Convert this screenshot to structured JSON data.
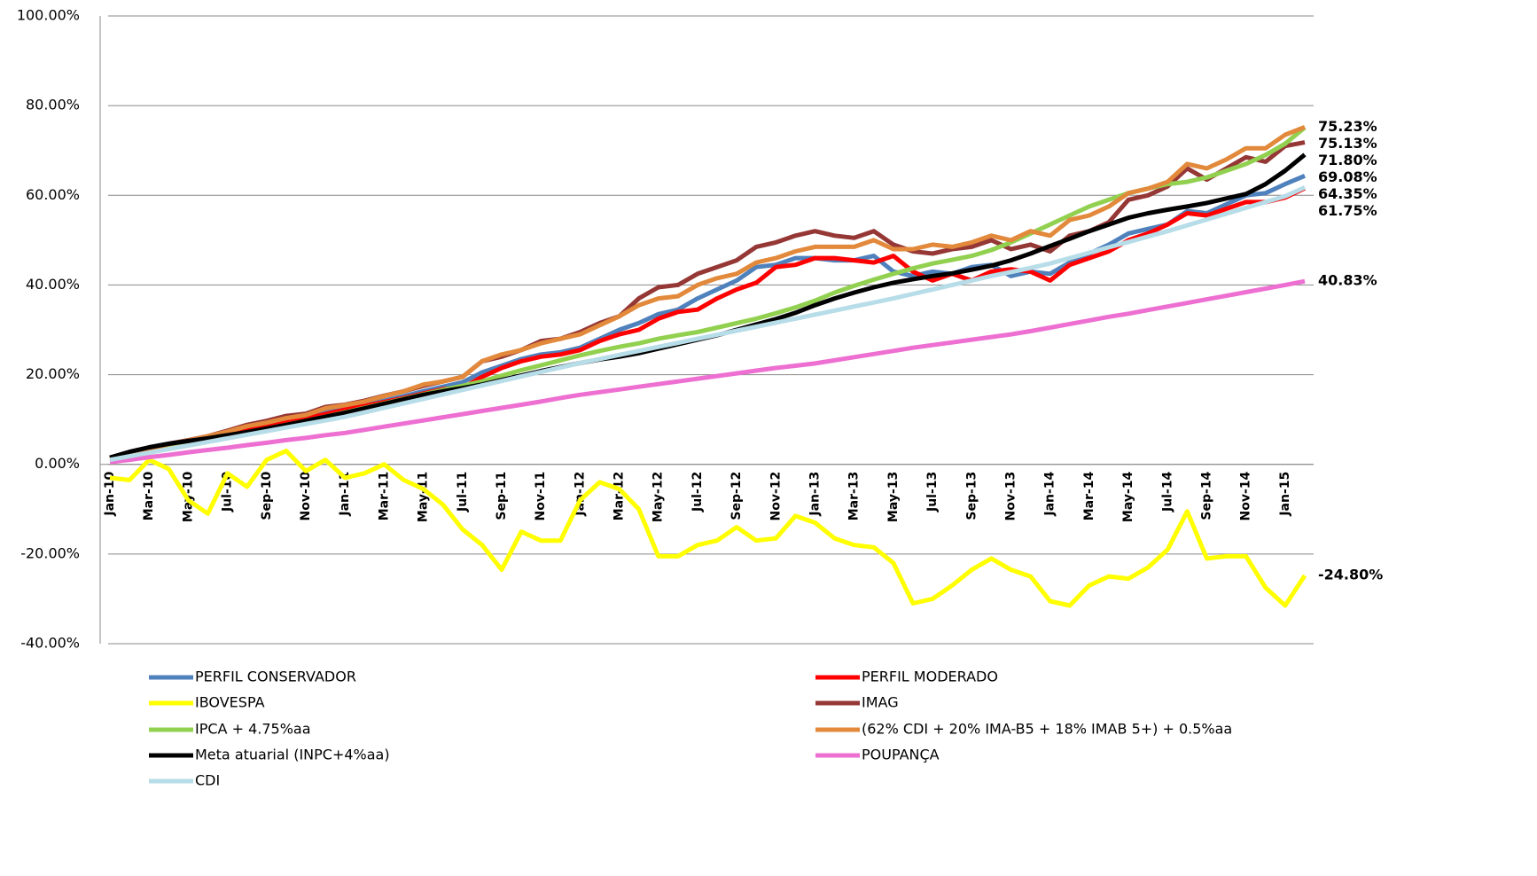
{
  "chart_data": {
    "type": "line",
    "categories": [
      "Jan-10",
      null,
      "Mar-10",
      null,
      "May-10",
      null,
      "Jul-10",
      null,
      "Sep-10",
      null,
      "Nov-10",
      null,
      "Jan-11",
      null,
      "Mar-11",
      null,
      "May-11",
      null,
      "Jul-11",
      null,
      "Sep-11",
      null,
      "Nov-11",
      null,
      "Jan-12",
      null,
      "Mar-12",
      null,
      "May-12",
      null,
      "Jul-12",
      null,
      "Sep-12",
      null,
      "Nov-12",
      null,
      "Jan-13",
      null,
      "Mar-13",
      null,
      "May-13",
      null,
      "Jul-13",
      null,
      "Sep-13",
      null,
      "Nov-13",
      null,
      "Jan-14",
      null,
      "Mar-14",
      null,
      "May-14",
      null,
      "Jul-14",
      null,
      "Sep-14",
      null,
      "Nov-14",
      null,
      "Jan-15",
      null
    ],
    "ylim": [
      -40,
      100
    ],
    "yticks": [
      {
        "value": -40,
        "label": "-40.00%"
      },
      {
        "value": -20,
        "label": "-20.00%"
      },
      {
        "value": 0,
        "label": "0.00%"
      },
      {
        "value": 20,
        "label": "20.00%"
      },
      {
        "value": 40,
        "label": "40.00%"
      },
      {
        "value": 60,
        "label": "60.00%"
      },
      {
        "value": 80,
        "label": "80.00%"
      },
      {
        "value": 100,
        "label": "100.00%"
      }
    ],
    "grid": true,
    "legend": "bottom",
    "series": [
      {
        "name": "PERFIL CONSERVADOR",
        "color": "#4f81bd",
        "values": [
          1.5,
          2.5,
          3.5,
          4.4,
          5.2,
          6.0,
          7.0,
          8.0,
          8.8,
          9.7,
          10.5,
          11.5,
          12.5,
          13.3,
          14.2,
          15.2,
          16.3,
          17.3,
          18.3,
          20.5,
          22.0,
          23.5,
          24.5,
          25.0,
          26.0,
          28.0,
          30.0,
          31.5,
          33.5,
          34.5,
          37.0,
          39.0,
          41.0,
          44.0,
          44.5,
          46.0,
          46.0,
          45.5,
          45.5,
          46.5,
          43.0,
          42.0,
          43.0,
          42.5,
          44.0,
          44.5,
          42.0,
          43.0,
          42.5,
          45.0,
          47.0,
          49.0,
          51.5,
          52.5,
          53.5,
          56.5,
          56.0,
          58.0,
          60.0,
          60.5,
          62.5,
          64.35
        ],
        "value_labels": [
          null,
          null,
          null,
          null,
          null,
          null,
          null,
          null,
          null,
          null,
          null,
          null,
          null,
          null,
          null,
          null,
          null,
          null,
          null,
          null,
          null,
          null,
          null,
          null,
          null,
          null,
          null,
          null,
          null,
          null,
          null,
          null,
          null,
          null,
          null,
          null,
          null,
          null,
          null,
          null,
          null,
          null,
          null,
          null,
          null,
          null,
          null,
          null,
          null,
          null,
          null,
          null,
          null,
          null,
          null,
          null,
          null,
          null,
          null,
          null,
          null,
          "64.35%"
        ]
      },
      {
        "name": "PERFIL MODERADO",
        "color": "#ff0000",
        "values": [
          1.3,
          2.3,
          3.3,
          4.2,
          5.0,
          5.8,
          6.8,
          7.6,
          8.4,
          9.3,
          10.2,
          11.2,
          12.2,
          13.0,
          13.9,
          14.8,
          15.8,
          16.8,
          17.0,
          19.5,
          21.5,
          23.0,
          24.0,
          24.5,
          25.5,
          27.5,
          29.0,
          30.0,
          32.5,
          34.0,
          34.5,
          37.0,
          39.0,
          40.5,
          44.0,
          44.5,
          46.0,
          46.0,
          45.5,
          45.0,
          46.5,
          43.0,
          41.0,
          42.5,
          41.0,
          43.0,
          43.5,
          43.0,
          41.0,
          44.5,
          46.0,
          47.5,
          50.0,
          51.5,
          53.5,
          56.0,
          55.5,
          57.0,
          58.5,
          58.5,
          59.5,
          61.6
        ]
      },
      {
        "name": "IBOVESPA",
        "color": "#ffff00",
        "values": [
          -3,
          -3.5,
          1,
          -1,
          -8,
          -11,
          -2,
          -5,
          1,
          3,
          -1.5,
          1,
          -3,
          -2,
          0,
          -3.5,
          -5.5,
          -9,
          -14.5,
          -18,
          -23.5,
          -15,
          -17,
          -17,
          -8,
          -4,
          -5.5,
          -10,
          -20.5,
          -20.5,
          -18,
          -17,
          -14,
          -17,
          -16.5,
          -11.5,
          -13,
          -16.5,
          -18,
          -18.5,
          -22,
          -31,
          -30,
          -27,
          -23.5,
          -21,
          -23.5,
          -25,
          -30.5,
          -31.5,
          -27,
          -25,
          -25.5,
          -23,
          -19,
          -10.5,
          -21,
          -20.5,
          -20.5,
          -27.5,
          -31.5,
          -24.8
        ],
        "value_labels": [
          null,
          null,
          null,
          null,
          null,
          null,
          null,
          null,
          null,
          null,
          null,
          null,
          null,
          null,
          null,
          null,
          null,
          null,
          null,
          null,
          null,
          null,
          null,
          null,
          null,
          null,
          null,
          null,
          null,
          null,
          null,
          null,
          null,
          null,
          null,
          null,
          null,
          null,
          null,
          null,
          null,
          null,
          null,
          null,
          null,
          null,
          null,
          null,
          null,
          null,
          null,
          null,
          null,
          null,
          null,
          null,
          null,
          null,
          null,
          null,
          null,
          "-24.80%"
        ]
      },
      {
        "name": "IMAG",
        "color": "#953735",
        "values": [
          1.5,
          2.6,
          3.7,
          4.6,
          5.4,
          6.3,
          7.5,
          8.8,
          9.7,
          10.8,
          11.3,
          12.8,
          13.3,
          14.2,
          15.3,
          16.3,
          17.5,
          18.5,
          19.5,
          23.0,
          24.0,
          25.5,
          27.5,
          28.0,
          29.5,
          31.5,
          33.0,
          37.0,
          39.5,
          40.0,
          42.5,
          44.0,
          45.5,
          48.5,
          49.5,
          51.0,
          52.0,
          51.0,
          50.5,
          52.0,
          49.0,
          47.5,
          47.0,
          48.0,
          48.5,
          50.0,
          48.0,
          49.0,
          47.5,
          51.0,
          52.0,
          54.0,
          59.0,
          60.0,
          62.0,
          66.0,
          63.5,
          66.0,
          68.5,
          67.5,
          71.0,
          71.8
        ],
        "value_labels": [
          null,
          null,
          null,
          null,
          null,
          null,
          null,
          null,
          null,
          null,
          null,
          null,
          null,
          null,
          null,
          null,
          null,
          null,
          null,
          null,
          null,
          null,
          null,
          null,
          null,
          null,
          null,
          null,
          null,
          null,
          null,
          null,
          null,
          null,
          null,
          null,
          null,
          null,
          null,
          null,
          null,
          null,
          null,
          null,
          null,
          null,
          null,
          null,
          null,
          null,
          null,
          null,
          null,
          null,
          null,
          null,
          null,
          null,
          null,
          null,
          null,
          "71.80%"
        ]
      },
      {
        "name": "IPCA + 4.75%aa",
        "color": "#92d050",
        "values": [
          1.2,
          2.3,
          3.4,
          4.3,
          5.0,
          5.6,
          6.3,
          7.1,
          7.9,
          8.8,
          9.7,
          10.6,
          11.6,
          12.6,
          13.6,
          14.6,
          15.6,
          16.6,
          17.5,
          18.5,
          19.8,
          21.0,
          22.1,
          23.2,
          24.3,
          25.3,
          26.2,
          27.0,
          28.0,
          28.8,
          29.5,
          30.5,
          31.5,
          32.5,
          33.7,
          35.0,
          36.5,
          38.3,
          39.8,
          41.2,
          42.5,
          43.7,
          44.8,
          45.6,
          46.5,
          47.8,
          49.5,
          51.5,
          53.5,
          55.5,
          57.5,
          59.0,
          60.5,
          61.5,
          62.5,
          63.0,
          64.0,
          65.5,
          67.0,
          69.0,
          71.5,
          75.13
        ],
        "value_labels": [
          null,
          null,
          null,
          null,
          null,
          null,
          null,
          null,
          null,
          null,
          null,
          null,
          null,
          null,
          null,
          null,
          null,
          null,
          null,
          null,
          null,
          null,
          null,
          null,
          null,
          null,
          null,
          null,
          null,
          null,
          null,
          null,
          null,
          null,
          null,
          null,
          null,
          null,
          null,
          null,
          null,
          null,
          null,
          null,
          null,
          null,
          null,
          null,
          null,
          null,
          null,
          null,
          null,
          null,
          null,
          null,
          null,
          null,
          null,
          null,
          null,
          "75.13%"
        ]
      },
      {
        "name": "(62% CDI + 20% IMA-B5 + 18% IMAB 5+) + 0.5%aa",
        "color": "#e2893b",
        "values": [
          1.3,
          2.5,
          3.5,
          4.5,
          5.3,
          6.3,
          7.3,
          8.5,
          9.3,
          10.3,
          11.0,
          12.5,
          13.2,
          14.0,
          15.2,
          16.3,
          17.8,
          18.5,
          19.5,
          23.0,
          24.5,
          25.5,
          27.0,
          28.0,
          29.0,
          31.0,
          33.0,
          35.5,
          37.0,
          37.5,
          40.0,
          41.5,
          42.5,
          45.0,
          46.0,
          47.5,
          48.5,
          48.5,
          48.5,
          50.0,
          48.0,
          48.0,
          49.0,
          48.5,
          49.5,
          51.0,
          50.0,
          52.0,
          51.0,
          54.5,
          55.5,
          57.5,
          60.5,
          61.5,
          63.0,
          67.0,
          66.0,
          68.0,
          70.5,
          70.5,
          73.5,
          75.23
        ],
        "value_labels": [
          null,
          null,
          null,
          null,
          null,
          null,
          null,
          null,
          null,
          null,
          null,
          null,
          null,
          null,
          null,
          null,
          null,
          null,
          null,
          null,
          null,
          null,
          null,
          null,
          null,
          null,
          null,
          null,
          null,
          null,
          null,
          null,
          null,
          null,
          null,
          null,
          null,
          null,
          null,
          null,
          null,
          null,
          null,
          null,
          null,
          null,
          null,
          null,
          null,
          null,
          null,
          null,
          null,
          null,
          null,
          null,
          null,
          null,
          null,
          null,
          null,
          "75.23%"
        ]
      },
      {
        "name": "Meta atuarial (INPC+4%aa)",
        "color": "#000000",
        "values": [
          1.5,
          2.8,
          3.8,
          4.6,
          5.2,
          5.8,
          6.5,
          7.2,
          8.0,
          8.8,
          9.7,
          10.6,
          11.5,
          12.5,
          13.5,
          14.5,
          15.5,
          16.3,
          17.0,
          17.8,
          18.8,
          19.8,
          20.8,
          21.7,
          22.6,
          23.4,
          24.0,
          24.8,
          25.8,
          26.8,
          27.8,
          28.8,
          30.0,
          31.2,
          32.4,
          33.8,
          35.5,
          37.0,
          38.3,
          39.5,
          40.5,
          41.3,
          42.0,
          42.6,
          43.4,
          44.3,
          45.5,
          47.0,
          48.7,
          50.3,
          52.0,
          53.5,
          55.0,
          56.0,
          56.8,
          57.5,
          58.3,
          59.3,
          60.3,
          62.5,
          65.5,
          69.08
        ],
        "value_labels": [
          null,
          null,
          null,
          null,
          null,
          null,
          null,
          null,
          null,
          null,
          null,
          null,
          null,
          null,
          null,
          null,
          null,
          null,
          null,
          null,
          null,
          null,
          null,
          null,
          null,
          null,
          null,
          null,
          null,
          null,
          null,
          null,
          null,
          null,
          null,
          null,
          null,
          null,
          null,
          null,
          null,
          null,
          null,
          null,
          null,
          null,
          null,
          null,
          null,
          null,
          null,
          null,
          null,
          null,
          null,
          null,
          null,
          null,
          null,
          null,
          null,
          "69.08%"
        ]
      },
      {
        "name": "POUPANÇA",
        "color": "#ee6fd2",
        "values": [
          0.5,
          1.0,
          1.6,
          2.1,
          2.7,
          3.2,
          3.7,
          4.3,
          4.8,
          5.4,
          5.9,
          6.5,
          7.0,
          7.7,
          8.4,
          9.1,
          9.8,
          10.5,
          11.2,
          11.9,
          12.6,
          13.3,
          14.0,
          14.8,
          15.5,
          16.1,
          16.7,
          17.3,
          17.9,
          18.5,
          19.1,
          19.7,
          20.3,
          20.9,
          21.5,
          22.0,
          22.5,
          23.2,
          23.9,
          24.6,
          25.3,
          26.0,
          26.6,
          27.2,
          27.8,
          28.4,
          29.0,
          29.7,
          30.5,
          31.3,
          32.1,
          32.9,
          33.6,
          34.4,
          35.2,
          36.0,
          36.8,
          37.6,
          38.4,
          39.2,
          40.0,
          40.83
        ],
        "value_labels": [
          null,
          null,
          null,
          null,
          null,
          null,
          null,
          null,
          null,
          null,
          null,
          null,
          null,
          null,
          null,
          null,
          null,
          null,
          null,
          null,
          null,
          null,
          null,
          null,
          null,
          null,
          null,
          null,
          null,
          null,
          null,
          null,
          null,
          null,
          null,
          null,
          null,
          null,
          null,
          null,
          null,
          null,
          null,
          null,
          null,
          null,
          null,
          null,
          null,
          null,
          null,
          null,
          null,
          null,
          null,
          null,
          null,
          null,
          null,
          null,
          null,
          "40.83%"
        ]
      },
      {
        "name": "CDI",
        "color": "#b7dde8",
        "values": [
          1.0,
          1.8,
          2.6,
          3.4,
          4.2,
          5.0,
          5.8,
          6.6,
          7.4,
          8.2,
          9.0,
          9.8,
          10.6,
          11.6,
          12.6,
          13.6,
          14.6,
          15.6,
          16.6,
          17.6,
          18.6,
          19.6,
          20.6,
          21.6,
          22.6,
          23.5,
          24.4,
          25.3,
          26.2,
          27.1,
          28.0,
          28.9,
          29.8,
          30.7,
          31.6,
          32.5,
          33.4,
          34.3,
          35.2,
          36.1,
          37.0,
          38.0,
          39.0,
          40.0,
          41.0,
          42.0,
          42.9,
          43.8,
          44.8,
          46.0,
          47.2,
          48.4,
          49.6,
          50.8,
          52.0,
          53.3,
          54.6,
          55.9,
          57.2,
          58.5,
          59.8,
          61.75
        ],
        "value_labels": [
          null,
          null,
          null,
          null,
          null,
          null,
          null,
          null,
          null,
          null,
          null,
          null,
          null,
          null,
          null,
          null,
          null,
          null,
          null,
          null,
          null,
          null,
          null,
          null,
          null,
          null,
          null,
          null,
          null,
          null,
          null,
          null,
          null,
          null,
          null,
          null,
          null,
          null,
          null,
          null,
          null,
          null,
          null,
          null,
          null,
          null,
          null,
          null,
          null,
          null,
          null,
          null,
          null,
          null,
          null,
          null,
          null,
          null,
          null,
          null,
          null,
          "61.75%"
        ]
      }
    ]
  }
}
